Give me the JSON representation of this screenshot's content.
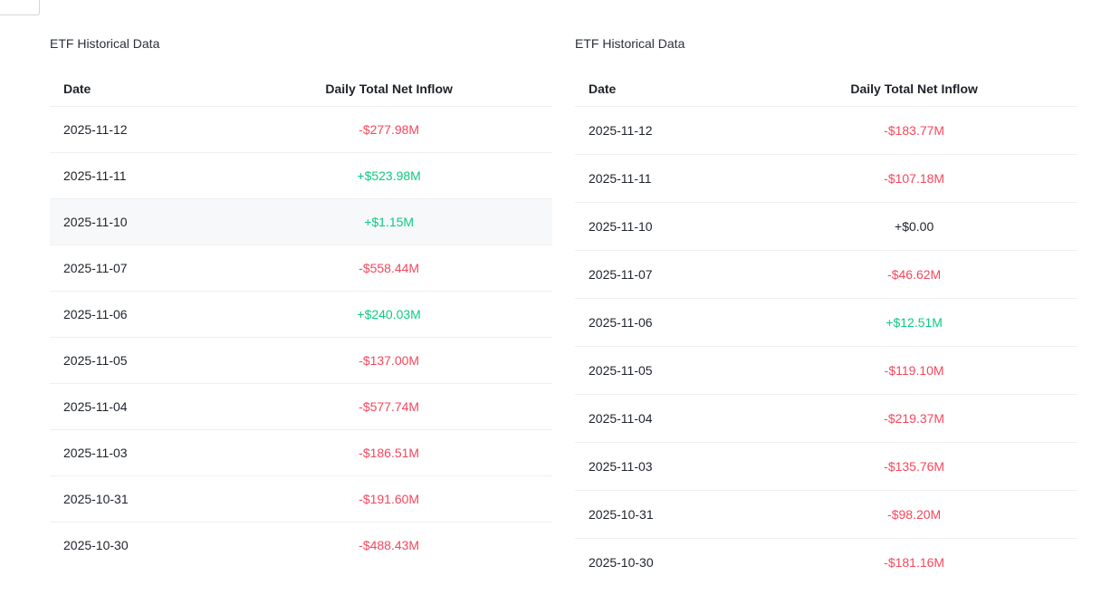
{
  "colors": {
    "positive": "#0ecb81",
    "negative": "#f5475d",
    "neutral": "#1e2329",
    "text_primary": "#1e2329",
    "title": "#2b3139",
    "divider": "#efefef",
    "row_highlight": "#f7f8f9"
  },
  "tables": [
    {
      "title": "ETF Historical Data",
      "columns": [
        "Date",
        "Daily Total Net Inflow"
      ],
      "rows": [
        {
          "date": "2025-11-12",
          "value": "-$277.98M",
          "direction": "negative",
          "highlighted": false
        },
        {
          "date": "2025-11-11",
          "value": "+$523.98M",
          "direction": "positive",
          "highlighted": false
        },
        {
          "date": "2025-11-10",
          "value": "+$1.15M",
          "direction": "positive",
          "highlighted": true
        },
        {
          "date": "2025-11-07",
          "value": "-$558.44M",
          "direction": "negative",
          "highlighted": false
        },
        {
          "date": "2025-11-06",
          "value": "+$240.03M",
          "direction": "positive",
          "highlighted": false
        },
        {
          "date": "2025-11-05",
          "value": "-$137.00M",
          "direction": "negative",
          "highlighted": false
        },
        {
          "date": "2025-11-04",
          "value": "-$577.74M",
          "direction": "negative",
          "highlighted": false
        },
        {
          "date": "2025-11-03",
          "value": "-$186.51M",
          "direction": "negative",
          "highlighted": false
        },
        {
          "date": "2025-10-31",
          "value": "-$191.60M",
          "direction": "negative",
          "highlighted": false
        },
        {
          "date": "2025-10-30",
          "value": "-$488.43M",
          "direction": "negative",
          "highlighted": false
        }
      ]
    },
    {
      "title": "ETF Historical Data",
      "columns": [
        "Date",
        "Daily Total Net Inflow"
      ],
      "rows": [
        {
          "date": "2025-11-12",
          "value": "-$183.77M",
          "direction": "negative",
          "highlighted": false
        },
        {
          "date": "2025-11-11",
          "value": "-$107.18M",
          "direction": "negative",
          "highlighted": false
        },
        {
          "date": "2025-11-10",
          "value": "+$0.00",
          "direction": "neutral",
          "highlighted": false
        },
        {
          "date": "2025-11-07",
          "value": "-$46.62M",
          "direction": "negative",
          "highlighted": false
        },
        {
          "date": "2025-11-06",
          "value": "+$12.51M",
          "direction": "positive",
          "highlighted": false
        },
        {
          "date": "2025-11-05",
          "value": "-$119.10M",
          "direction": "negative",
          "highlighted": false
        },
        {
          "date": "2025-11-04",
          "value": "-$219.37M",
          "direction": "negative",
          "highlighted": false
        },
        {
          "date": "2025-11-03",
          "value": "-$135.76M",
          "direction": "negative",
          "highlighted": false
        },
        {
          "date": "2025-10-31",
          "value": "-$98.20M",
          "direction": "negative",
          "highlighted": false
        },
        {
          "date": "2025-10-30",
          "value": "-$181.16M",
          "direction": "negative",
          "highlighted": false
        }
      ]
    }
  ]
}
